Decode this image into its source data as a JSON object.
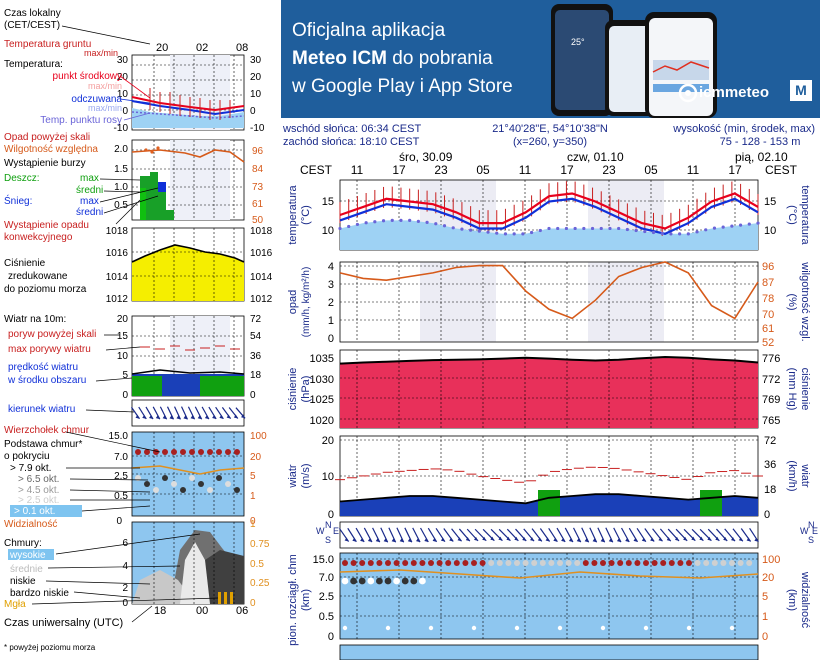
{
  "banner": {
    "line1": "Oficjalna aplikacja",
    "line2_bold": "Meteo ICM",
    "line2_rest": " do pobrania",
    "line3": "w Google Play i App Store",
    "brand": "icmmeteo",
    "brand_m": "M",
    "phone_temp": "25°"
  },
  "info": {
    "sunrise": "wschód słońca: 06:34 CEST",
    "sunset": "zachód słońca: 18:10 CEST",
    "coords": "21°40'28\"E, 54°10'38\"N",
    "grid": "(x=260, y=350)",
    "elevation_label": "wysokość (min, środek, max)",
    "elevation": "75 - 128 - 153 m"
  },
  "timeaxis": {
    "tz": "CEST",
    "days": [
      {
        "label": "śro, 30.09",
        "hour_idx": 1
      },
      {
        "label": "czw, 01.10",
        "hour_idx": 5
      },
      {
        "label": "pią, 02.10",
        "hour_idx": 9
      }
    ],
    "hours": [
      "11",
      "17",
      "23",
      "05",
      "11",
      "17",
      "23",
      "05",
      "11",
      "17"
    ]
  },
  "legend": {
    "czas_lokalny": "Czas lokalny",
    "cet": "(CET/CEST)",
    "small_hours": [
      "20",
      "02",
      "08"
    ],
    "temp_ticks_left": [
      "30",
      "20",
      "10",
      "0",
      "-10"
    ],
    "temp_ticks_right": [
      "30",
      "20",
      "10",
      "0",
      "-10"
    ],
    "temperatura_gruntu": "Temperatura gruntu",
    "maxmin1": "max/min",
    "temperatura": "Temperatura:",
    "punkt_srodkowy": "punkt środkowy",
    "maxmin2": "max/min",
    "odczuwana": "odczuwana",
    "maxmin3": "max/min",
    "punkt_rosy": "Temp. punktu rosy",
    "opad_powyzej": "Opad powyżej skali",
    "wilgotnosc": "Wilgotność względna",
    "burza": "Wystąpienie burzy",
    "deszcz": "Deszcz:",
    "snieg": "Śnieg:",
    "max": "max",
    "sredni": "średni",
    "wystapienie_opadu": "Wystąpienie opadu",
    "konwekcyjnego": "konwekcyjnego",
    "precip_ticks": [
      "2.0",
      "1.5",
      "1.0",
      "0.5"
    ],
    "rh_ticks": [
      "96",
      "84",
      "73",
      "61",
      "50"
    ],
    "cisnienie1": "Ciśnienie",
    "cisnienie2": "zredukowane",
    "cisnienie3": "do poziomu morza",
    "press_ticks": [
      "1018",
      "1016",
      "1014",
      "1012"
    ],
    "wiatr": "Wiatr na 10m:",
    "wind_ticks": [
      "20",
      "15",
      "10",
      "5",
      "0"
    ],
    "wind_ticks_right": [
      "72",
      "54",
      "36",
      "18",
      "0"
    ],
    "poryw_skali": "poryw powyżej skali",
    "max_porywy": "max porywy wiatru",
    "predkosc1": "prędkość wiatru",
    "predkosc2": "w środku obszaru",
    "kierunek": "kierunek wiatru",
    "wierzcholek": "Wierzchołek chmur",
    "podstawa1": "Podstawa chmur*",
    "podstawa2": "o pokryciu",
    "okt": [
      "> 7.9 okt.",
      "> 6.5 okt.",
      "> 4.5 okt.",
      "> 2.5 okt.",
      "> 0.1 okt."
    ],
    "cloud_ticks": [
      "15.0",
      "7.0",
      "2.5",
      "0.5"
    ],
    "vis_ticks": [
      "100",
      "20",
      "5",
      "1"
    ],
    "widzialnosc": "Widzialność",
    "vis_zero_left": "0",
    "vis_zero_right": "0",
    "chmury": "Chmury:",
    "wysokie": "wysokie",
    "srednie": "średnie",
    "niskie": "niskie",
    "bardzo_niskie": "bardzo niskie",
    "mgla": "Mgła",
    "cl_ticks": [
      "6",
      "4",
      "2"
    ],
    "cl_zero": "0",
    "cl_ticks_right": [
      "1",
      "0.75",
      "0.5",
      "0.25",
      "0"
    ],
    "utc_hours": [
      "18",
      "00",
      "06"
    ],
    "utc": "Czas uniwersalny (UTC)",
    "footnote": "* powyżej poziomu morza"
  },
  "panels": {
    "temperature": {
      "ylabel": "temperatura",
      "unit": "(°C)",
      "ticks": [
        "15",
        "10"
      ]
    },
    "precip": {
      "ylabel": "opad",
      "unit": "(mm/h, kg/m²/h)",
      "ticks": [
        "4",
        "3",
        "2",
        "1",
        "0"
      ],
      "rylabel": "wilgotność wzgl.",
      "runit": "(%)",
      "rticks": [
        "96",
        "87",
        "78",
        "70",
        "61",
        "52"
      ]
    },
    "pressure": {
      "ylabel": "ciśnienie",
      "unit": "(hPa)",
      "ticks": [
        "1035",
        "1030",
        "1025",
        "1020"
      ],
      "rylabel": "ciśnienie",
      "runit": "(mm Hg)",
      "rticks": [
        "776",
        "772",
        "769",
        "765"
      ]
    },
    "wind": {
      "ylabel": "wiatr",
      "unit": "(m/s)",
      "ticks": [
        "20",
        "10",
        "0"
      ],
      "rylabel": "wiatr",
      "runit": "(km/h)",
      "rticks": [
        "72",
        "36",
        "18",
        "0"
      ]
    },
    "clouds": {
      "ylabel": "pion. rozciągł. chm",
      "unit": "(km)",
      "ticks": [
        "15.0",
        "7.0",
        "2.5",
        "0.5",
        "0"
      ],
      "rylabel": "widzialność",
      "runit": "(km)",
      "rticks": [
        "100",
        "20",
        "5",
        "1",
        "0"
      ]
    },
    "compass": {
      "labels": [
        "W",
        "N",
        "S",
        "E"
      ]
    }
  },
  "colors": {
    "temp": "#e8001c",
    "feel": "#1030d8",
    "dew": "#6a64d8",
    "humidity": "#d65a1a",
    "pressure_fill": "#e8305a",
    "pressure_fill_legend": "#f5ee00",
    "wind_speed": "#18a028",
    "wind_gust": "#d01818",
    "banner": "#1f5e9c"
  },
  "chart_data": [
    {
      "type": "line",
      "title": "temperatura",
      "x": [
        "11",
        "14",
        "17",
        "20",
        "23",
        "02",
        "05",
        "08",
        "11",
        "14",
        "17",
        "20",
        "23",
        "02",
        "05",
        "08",
        "11",
        "14",
        "17"
      ],
      "series": [
        {
          "name": "temperatura",
          "values": [
            13.5,
            15,
            16.5,
            16,
            15.5,
            14,
            12,
            12,
            14,
            17,
            17.5,
            16,
            14,
            12,
            11,
            13,
            16,
            17.5,
            15
          ]
        },
        {
          "name": "odczuwana",
          "values": [
            12.5,
            14,
            15.5,
            15,
            14.5,
            13,
            11,
            11,
            13,
            16,
            16.5,
            15,
            13,
            11,
            10,
            12,
            15,
            16.5,
            14
          ]
        },
        {
          "name": "temp. punktu rosy",
          "values": [
            11,
            12,
            12.5,
            12.5,
            12,
            11,
            10.5,
            10,
            10,
            11,
            11,
            11,
            11,
            10.5,
            10,
            10,
            11,
            11.5,
            12
          ]
        }
      ],
      "ylim": [
        7,
        20
      ]
    },
    {
      "type": "line",
      "title": "wilgotność wzgl.",
      "x": [
        "11",
        "14",
        "17",
        "20",
        "23",
        "02",
        "05",
        "08",
        "11",
        "14",
        "17",
        "20",
        "23",
        "02",
        "05",
        "08",
        "11",
        "14",
        "17"
      ],
      "series": [
        {
          "name": "wilgotność",
          "values": [
            90,
            87,
            86,
            88,
            90,
            93,
            94,
            94,
            80,
            70,
            65,
            75,
            88,
            93,
            96,
            90,
            72,
            65,
            85
          ]
        }
      ],
      "ylim": [
        52,
        96
      ]
    },
    {
      "type": "area",
      "title": "ciśnienie",
      "x": [
        "11",
        "14",
        "17",
        "20",
        "23",
        "02",
        "05",
        "08",
        "11",
        "14",
        "17",
        "20",
        "23",
        "02",
        "05",
        "08",
        "11",
        "14",
        "17"
      ],
      "series": [
        {
          "name": "ciśnienie",
          "values": [
            1033.5,
            1033.8,
            1034.0,
            1034.2,
            1034.4,
            1034.5,
            1034.6,
            1034.8,
            1035.0,
            1034.8,
            1034.5,
            1034.3,
            1034.5,
            1034.9,
            1035.2,
            1035.0,
            1034.6,
            1034.3,
            1033.8
          ]
        }
      ],
      "ylim": [
        1017,
        1037
      ]
    },
    {
      "type": "line",
      "title": "wiatr",
      "x": [
        "11",
        "14",
        "17",
        "20",
        "23",
        "02",
        "05",
        "08",
        "11",
        "14",
        "17",
        "20",
        "23",
        "02",
        "05",
        "08",
        "11",
        "14",
        "17"
      ],
      "series": [
        {
          "name": "prędkość wiatru",
          "values": [
            4,
            4.5,
            5,
            5.5,
            5.5,
            5,
            4.5,
            4,
            3.5,
            5,
            5.5,
            6,
            6,
            5.5,
            5,
            4.5,
            5,
            5.5,
            5
          ]
        },
        {
          "name": "max porywy wiatru",
          "values": [
            10,
            11,
            12,
            12.5,
            13,
            12.5,
            11,
            10,
            9,
            12,
            13,
            13.5,
            13,
            12,
            11,
            10,
            12,
            12.5,
            11
          ]
        }
      ],
      "ylim": [
        0,
        22
      ]
    }
  ]
}
